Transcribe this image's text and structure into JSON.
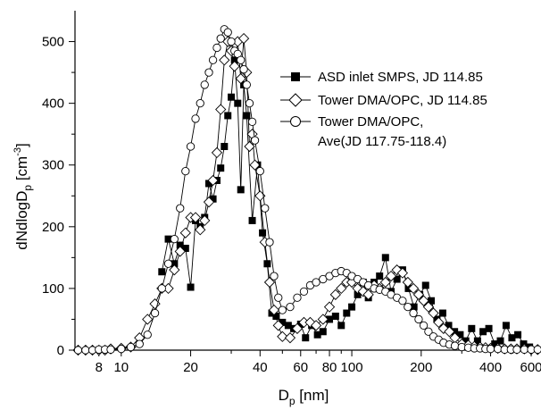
{
  "chart_data": {
    "type": "scatter",
    "title": "",
    "xlabel": {
      "main": "D",
      "sub": "p",
      "unit": " [nm]"
    },
    "ylabel": {
      "main": "dNdlogD",
      "sub": "p",
      "unit": " [cm",
      "sup": "-3",
      "close": "]"
    },
    "xscale": "log",
    "xlim": [
      6.3,
      650
    ],
    "ylim": [
      0,
      550
    ],
    "grid": false,
    "legend_position": "right",
    "xticks": [
      {
        "value": 8,
        "label": "8"
      },
      {
        "value": 10,
        "label": "10"
      },
      {
        "value": 20,
        "label": "20"
      },
      {
        "value": 40,
        "label": "40"
      },
      {
        "value": 60,
        "label": "60"
      },
      {
        "value": 80,
        "label": "80"
      },
      {
        "value": 100,
        "label": "100"
      },
      {
        "value": 200,
        "label": "200"
      },
      {
        "value": 400,
        "label": "400"
      },
      {
        "value": 600,
        "label": "600"
      }
    ],
    "yticks": [
      0,
      100,
      200,
      300,
      400,
      500
    ],
    "series": [
      {
        "name": "ASD inlet SMPS, JD 114.85",
        "marker": "filled-square",
        "color": "#000000",
        "x": [
          15,
          16,
          17,
          18,
          19,
          20,
          21,
          22,
          23,
          24,
          25,
          26,
          27,
          28,
          29,
          30,
          31,
          32,
          33,
          34,
          35,
          37,
          39,
          41,
          43,
          45,
          47,
          50,
          53,
          56,
          60,
          63,
          67,
          71,
          75,
          80,
          85,
          90,
          95,
          100,
          106,
          112,
          118,
          125,
          132,
          140,
          148,
          157,
          166,
          176,
          186,
          197,
          209,
          221,
          234,
          248,
          263,
          279,
          295,
          312,
          331,
          351,
          371,
          393,
          417,
          441,
          467,
          495,
          525,
          556,
          590
        ],
        "y": [
          127,
          180,
          140,
          170,
          165,
          102,
          210,
          200,
          215,
          270,
          245,
          275,
          295,
          330,
          380,
          410,
          470,
          400,
          260,
          430,
          380,
          210,
          300,
          190,
          140,
          60,
          55,
          45,
          40,
          35,
          42,
          20,
          40,
          25,
          30,
          50,
          55,
          40,
          60,
          70,
          90,
          110,
          85,
          110,
          120,
          150,
          95,
          115,
          130,
          100,
          70,
          90,
          105,
          80,
          50,
          60,
          40,
          30,
          25,
          15,
          35,
          15,
          30,
          35,
          10,
          15,
          40,
          20,
          25,
          10,
          5
        ]
      },
      {
        "name": "Tower DMA/OPC, JD 114.85",
        "marker": "open-diamond",
        "color": "#000000",
        "x": [
          6.5,
          7,
          7.5,
          8,
          8.5,
          9,
          10,
          11,
          12,
          13,
          14,
          15,
          16,
          17,
          18,
          19,
          20,
          21,
          22,
          23,
          24,
          25,
          26,
          27,
          28,
          29,
          30,
          31,
          32,
          33,
          34,
          35,
          36,
          37,
          38,
          40,
          42,
          44,
          46,
          48,
          50,
          54,
          58,
          62,
          66,
          70,
          75,
          80,
          85,
          90,
          95,
          100,
          106,
          112,
          118,
          125,
          132,
          140,
          148,
          157,
          166,
          175,
          185,
          195,
          205,
          215,
          226,
          238,
          250,
          265,
          280,
          300,
          320,
          340,
          360,
          380,
          400,
          430,
          460,
          490,
          520,
          560,
          600,
          640
        ],
        "y": [
          0,
          0,
          0,
          0,
          0,
          2,
          3,
          5,
          20,
          50,
          75,
          100,
          100,
          130,
          160,
          190,
          215,
          215,
          195,
          210,
          240,
          275,
          320,
          390,
          470,
          500,
          485,
          460,
          500,
          440,
          505,
          450,
          330,
          350,
          300,
          250,
          175,
          110,
          65,
          40,
          22,
          20,
          35,
          45,
          45,
          40,
          50,
          70,
          90,
          100,
          110,
          110,
          100,
          95,
          90,
          105,
          100,
          110,
          120,
          130,
          125,
          110,
          100,
          90,
          80,
          70,
          60,
          45,
          35,
          30,
          20,
          10,
          8,
          6,
          5,
          4,
          3,
          3,
          2,
          2,
          2,
          2,
          1,
          1
        ]
      },
      {
        "name": "Tower DMA/OPC,",
        "name_line2": "Ave(JD 117.75-118.4)",
        "marker": "open-circle",
        "color": "#000000",
        "x": [
          6.5,
          7,
          7.5,
          8,
          8.5,
          9,
          10,
          11,
          12,
          13,
          14,
          15,
          16,
          17,
          18,
          19,
          20,
          21,
          22,
          23,
          24,
          25,
          26,
          27,
          28,
          29,
          30,
          31,
          32,
          33,
          34,
          35,
          36,
          37,
          38,
          40,
          42,
          44,
          46,
          48,
          50,
          54,
          58,
          62,
          66,
          70,
          75,
          80,
          85,
          90,
          95,
          100,
          106,
          112,
          118,
          125,
          132,
          140,
          148,
          157,
          166,
          175,
          185,
          195,
          205,
          215,
          226,
          238,
          250,
          265,
          280,
          300,
          320,
          340,
          360,
          380,
          400,
          430,
          460,
          490,
          520,
          560,
          600,
          640
        ],
        "y": [
          0,
          0,
          0,
          1,
          1,
          1,
          2,
          5,
          10,
          25,
          60,
          100,
          140,
          180,
          230,
          290,
          330,
          375,
          400,
          430,
          450,
          470,
          490,
          505,
          520,
          515,
          500,
          485,
          480,
          470,
          455,
          430,
          400,
          370,
          340,
          290,
          230,
          175,
          120,
          85,
          65,
          70,
          85,
          95,
          105,
          110,
          115,
          120,
          125,
          128,
          125,
          120,
          115,
          110,
          105,
          100,
          98,
          95,
          90,
          85,
          80,
          70,
          60,
          50,
          40,
          30,
          22,
          17,
          12,
          9,
          7,
          5,
          4,
          3,
          3,
          2,
          2,
          2,
          1,
          1,
          1,
          1,
          1,
          1
        ]
      }
    ]
  }
}
